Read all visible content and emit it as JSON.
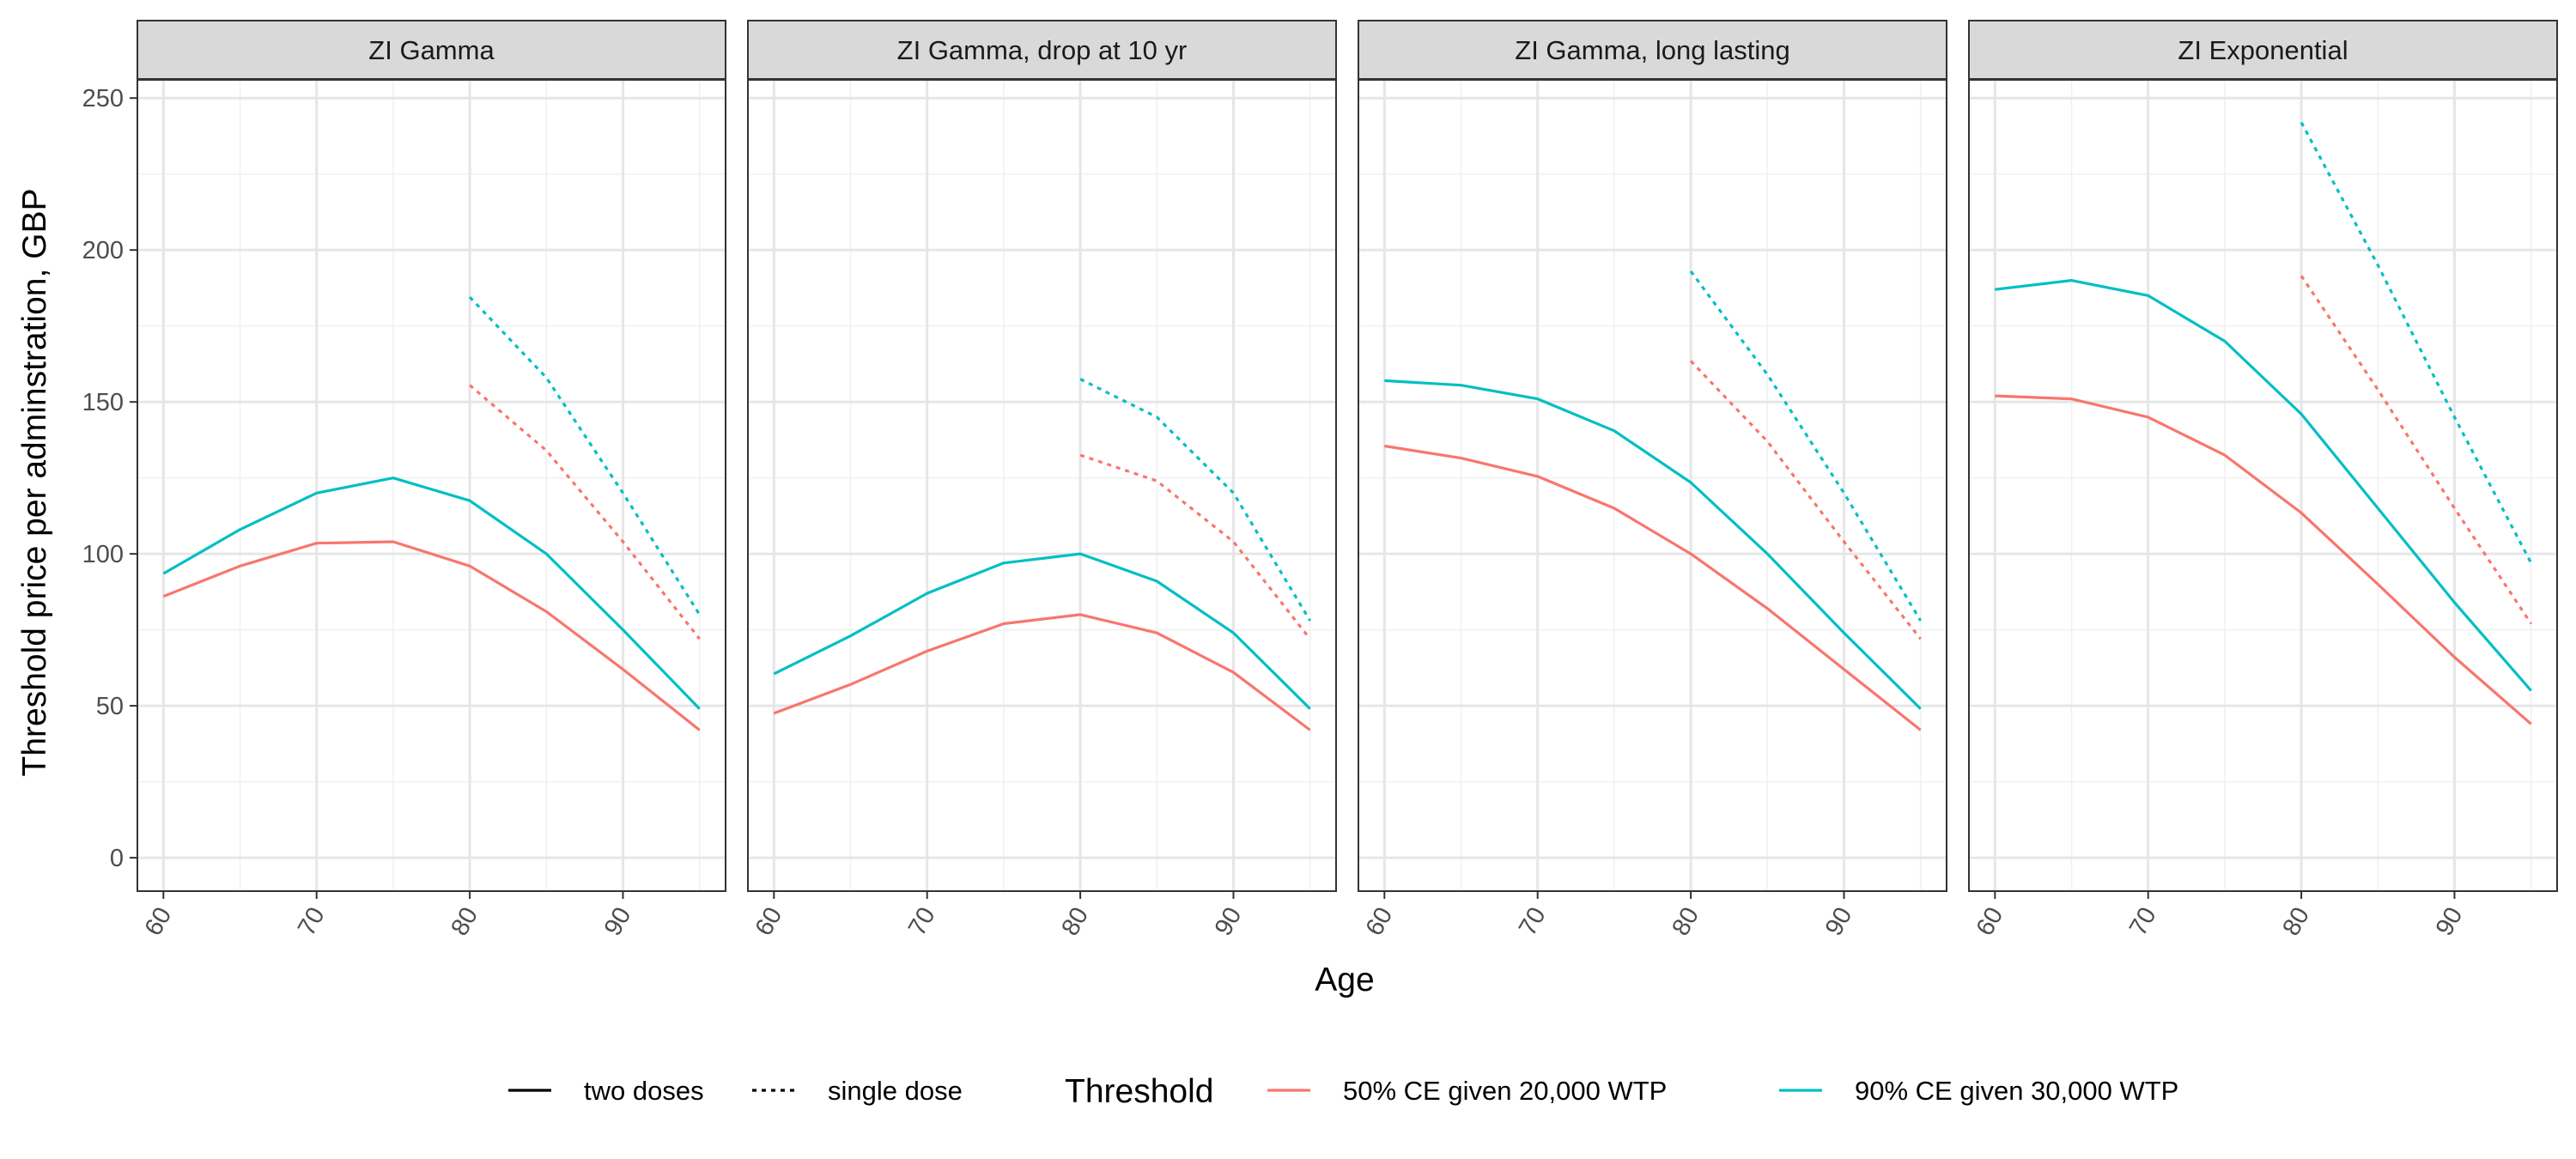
{
  "chart_data": {
    "type": "line",
    "xlabel": "Age",
    "ylabel": "Threshold price per adminstration, GBP",
    "x_ticks": [
      60,
      70,
      80,
      90
    ],
    "y_ticks": [
      0,
      50,
      100,
      150,
      200,
      250
    ],
    "xlim": [
      58.3,
      96.7
    ],
    "ylim": [
      -11,
      256
    ],
    "grid": true,
    "colors": {
      "red": "#F8766D",
      "cyan": "#00BFC4"
    },
    "legend": {
      "placement": "bottom",
      "linetype_items": [
        {
          "label": "two doses",
          "dash": "solid"
        },
        {
          "label": "single dose",
          "dash": "dotted"
        }
      ],
      "threshold_title": "Threshold",
      "threshold_items": [
        {
          "label": "50% CE given 20,000 WTP",
          "color": "#F8766D"
        },
        {
          "label": "90% CE given 30,000 WTP",
          "color": "#00BFC4"
        }
      ]
    },
    "panels": [
      {
        "title": "ZI Gamma",
        "series": [
          {
            "threshold": "50% CE given 20,000 WTP",
            "dose": "two doses",
            "color": "#F8766D",
            "dash": "solid",
            "x": [
              60,
              65,
              70,
              75,
              80,
              85,
              90,
              95
            ],
            "y": [
              86,
              96,
              103.5,
              104,
              96,
              81,
              62,
              42
            ]
          },
          {
            "threshold": "90% CE given 30,000 WTP",
            "dose": "two doses",
            "color": "#00BFC4",
            "dash": "solid",
            "x": [
              60,
              65,
              70,
              75,
              80,
              85,
              90,
              95
            ],
            "y": [
              93.5,
              108,
              120,
              125,
              117.5,
              100,
              75,
              49
            ]
          },
          {
            "threshold": "50% CE given 20,000 WTP",
            "dose": "single dose",
            "color": "#F8766D",
            "dash": "dotted",
            "x": [
              80,
              85,
              90,
              95
            ],
            "y": [
              155.5,
              134,
              104,
              72
            ]
          },
          {
            "threshold": "90% CE given 30,000 WTP",
            "dose": "single dose",
            "color": "#00BFC4",
            "dash": "dotted",
            "x": [
              80,
              85,
              90,
              95
            ],
            "y": [
              184.5,
              158,
              120,
              80
            ]
          }
        ]
      },
      {
        "title": "ZI Gamma, drop at 10 yr",
        "series": [
          {
            "threshold": "50% CE given 20,000 WTP",
            "dose": "two doses",
            "color": "#F8766D",
            "dash": "solid",
            "x": [
              60,
              65,
              70,
              75,
              80,
              85,
              90,
              95
            ],
            "y": [
              47.5,
              57,
              68,
              77,
              80,
              74,
              61,
              42
            ]
          },
          {
            "threshold": "90% CE given 30,000 WTP",
            "dose": "two doses",
            "color": "#00BFC4",
            "dash": "solid",
            "x": [
              60,
              65,
              70,
              75,
              80,
              85,
              90,
              95
            ],
            "y": [
              60.5,
              73,
              87,
              97,
              100,
              91,
              74,
              49
            ]
          },
          {
            "threshold": "50% CE given 20,000 WTP",
            "dose": "single dose",
            "color": "#F8766D",
            "dash": "dotted",
            "x": [
              80,
              85,
              90,
              95
            ],
            "y": [
              132.5,
              124,
              104,
              72
            ]
          },
          {
            "threshold": "90% CE given 30,000 WTP",
            "dose": "single dose",
            "color": "#00BFC4",
            "dash": "dotted",
            "x": [
              80,
              85,
              90,
              95
            ],
            "y": [
              157.5,
              145,
              120,
              78
            ]
          }
        ]
      },
      {
        "title": "ZI Gamma, long lasting",
        "series": [
          {
            "threshold": "50% CE given 20,000 WTP",
            "dose": "two doses",
            "color": "#F8766D",
            "dash": "solid",
            "x": [
              60,
              65,
              70,
              75,
              80,
              85,
              90,
              95
            ],
            "y": [
              135.5,
              131.5,
              125.5,
              115,
              100,
              82,
              62,
              42
            ]
          },
          {
            "threshold": "90% CE given 30,000 WTP",
            "dose": "two doses",
            "color": "#00BFC4",
            "dash": "solid",
            "x": [
              60,
              65,
              70,
              75,
              80,
              85,
              90,
              95
            ],
            "y": [
              157,
              155.5,
              151,
              140.5,
              123.5,
              100,
              74,
              49
            ]
          },
          {
            "threshold": "50% CE given 20,000 WTP",
            "dose": "single dose",
            "color": "#F8766D",
            "dash": "dotted",
            "x": [
              80,
              85,
              90,
              95
            ],
            "y": [
              163.5,
              137,
              104,
              72
            ]
          },
          {
            "threshold": "90% CE given 30,000 WTP",
            "dose": "single dose",
            "color": "#00BFC4",
            "dash": "dotted",
            "x": [
              80,
              85,
              90,
              95
            ],
            "y": [
              193,
              159,
              120,
              78
            ]
          }
        ]
      },
      {
        "title": "ZI Exponential",
        "series": [
          {
            "threshold": "50% CE given 20,000 WTP",
            "dose": "two doses",
            "color": "#F8766D",
            "dash": "solid",
            "x": [
              60,
              65,
              70,
              75,
              80,
              85,
              90,
              95
            ],
            "y": [
              152,
              151,
              145,
              132.5,
              113.5,
              90,
              66,
              44
            ]
          },
          {
            "threshold": "90% CE given 30,000 WTP",
            "dose": "two doses",
            "color": "#00BFC4",
            "dash": "solid",
            "x": [
              60,
              65,
              70,
              75,
              80,
              85,
              90,
              95
            ],
            "y": [
              187,
              190,
              185,
              170,
              146,
              115,
              84,
              55
            ]
          },
          {
            "threshold": "50% CE given 20,000 WTP",
            "dose": "single dose",
            "color": "#F8766D",
            "dash": "dotted",
            "x": [
              80,
              85,
              90,
              95
            ],
            "y": [
              191.5,
              154,
              115,
              77
            ]
          },
          {
            "threshold": "90% CE given 30,000 WTP",
            "dose": "single dose",
            "color": "#00BFC4",
            "dash": "dotted",
            "x": [
              80,
              85,
              90,
              95
            ],
            "y": [
              242,
              195,
              145,
              97
            ]
          }
        ]
      }
    ]
  }
}
